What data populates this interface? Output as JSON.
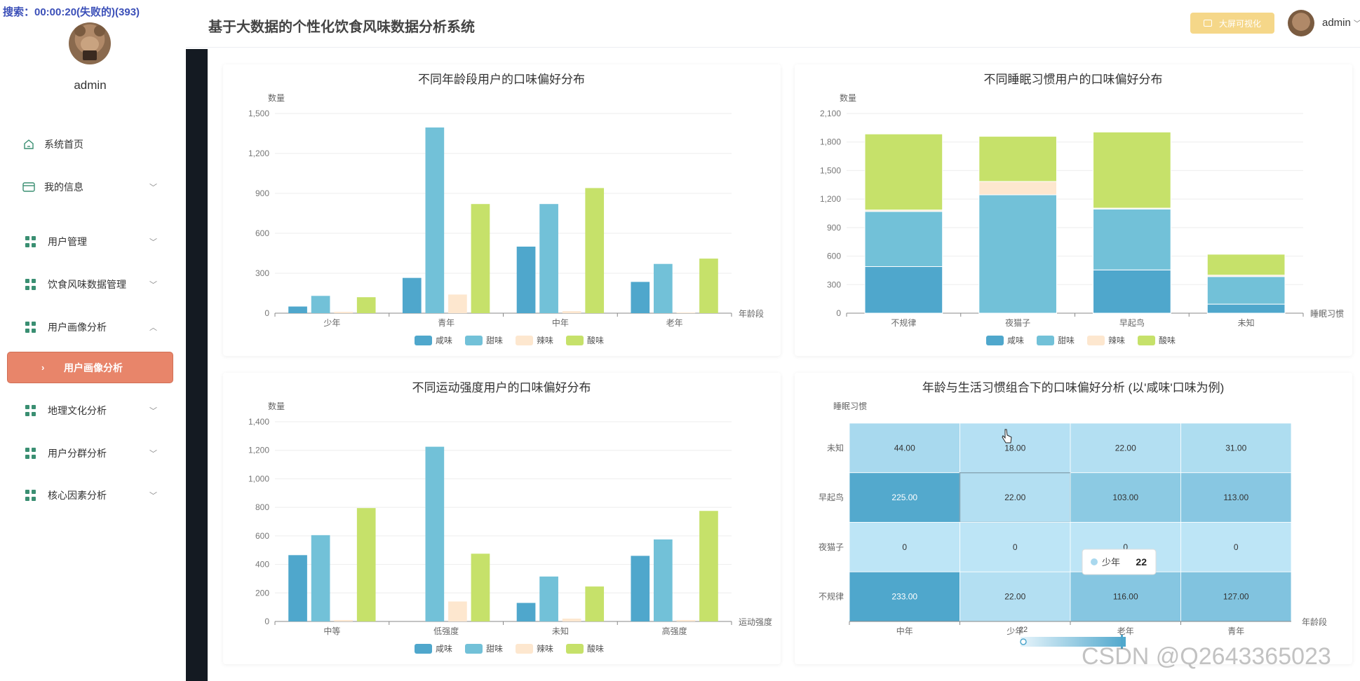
{
  "overlay": {
    "text": "搜索：00:00:20(失败的)(393)"
  },
  "sidebar": {
    "username": "admin",
    "items": [
      {
        "label": "系统首页",
        "icon": "home-icon",
        "has_chevron": false
      },
      {
        "label": "我的信息",
        "icon": "wallet-icon",
        "has_chevron": true
      },
      {
        "label": "用户管理",
        "icon": "grid-icon",
        "has_chevron": true
      },
      {
        "label": "饮食风味数据管理",
        "icon": "grid-icon",
        "has_chevron": true
      },
      {
        "label": "用户画像分析",
        "icon": "grid-icon",
        "has_chevron": true,
        "expanded": true
      },
      {
        "label": "地理文化分析",
        "icon": "grid-icon",
        "has_chevron": true
      },
      {
        "label": "用户分群分析",
        "icon": "grid-icon",
        "has_chevron": true
      },
      {
        "label": "核心因素分析",
        "icon": "grid-icon",
        "has_chevron": true
      }
    ],
    "active_sub_item": {
      "label": "用户画像分析"
    }
  },
  "header": {
    "title": "基于大数据的个性化饮食风味数据分析系统",
    "bigscreen_label": "大屏可视化",
    "username": "admin"
  },
  "colors": {
    "咸味": "#4fa7cc",
    "甜味": "#72c1d8",
    "辣味": "#fde7cf",
    "酸味": "#c6e16a",
    "accent": "#e8856a"
  },
  "chart_data": [
    {
      "type": "bar",
      "title": "不同年龄段用户的口味偏好分布",
      "ylabel": "数量",
      "xlabel": "年龄段",
      "ylim": [
        0,
        1500
      ],
      "yticks": [
        "0",
        "300",
        "600",
        "900",
        "1,200",
        "1,500"
      ],
      "yticks_values": [
        0,
        300,
        600,
        900,
        1200,
        1500
      ],
      "categories": [
        "少年",
        "青年",
        "中年",
        "老年"
      ],
      "series": [
        {
          "name": "咸味",
          "values": [
            50,
            265,
            500,
            235
          ]
        },
        {
          "name": "甜味",
          "values": [
            130,
            1395,
            820,
            370
          ]
        },
        {
          "name": "辣味",
          "values": [
            10,
            140,
            15,
            5
          ]
        },
        {
          "name": "酸味",
          "values": [
            120,
            820,
            940,
            410
          ]
        }
      ],
      "legend": "bottom"
    },
    {
      "type": "bar",
      "stacked": true,
      "title": "不同睡眠习惯用户的口味偏好分布",
      "ylabel": "数量",
      "xlabel": "睡眠习惯",
      "ylim": [
        0,
        2100
      ],
      "yticks": [
        "0",
        "300",
        "600",
        "900",
        "1,200",
        "1,500",
        "1,800",
        "2,100"
      ],
      "yticks_values": [
        0,
        300,
        600,
        900,
        1200,
        1500,
        1800,
        2100
      ],
      "categories": [
        "不规律",
        "夜猫子",
        "早起鸟",
        "未知"
      ],
      "series": [
        {
          "name": "咸味",
          "values": [
            490,
            0,
            455,
            95
          ]
        },
        {
          "name": "甜味",
          "values": [
            580,
            1245,
            640,
            290
          ]
        },
        {
          "name": "辣味",
          "values": [
            15,
            140,
            10,
            15
          ]
        },
        {
          "name": "酸味",
          "values": [
            800,
            475,
            800,
            220
          ]
        }
      ],
      "legend": "bottom"
    },
    {
      "type": "bar",
      "title": "不同运动强度用户的口味偏好分布",
      "ylabel": "数量",
      "xlabel": "运动强度",
      "ylim": [
        0,
        1400
      ],
      "yticks": [
        "0",
        "200",
        "400",
        "600",
        "800",
        "1,000",
        "1,200",
        "1,400"
      ],
      "yticks_values": [
        0,
        200,
        400,
        600,
        800,
        1000,
        1200,
        1400
      ],
      "categories": [
        "中等",
        "低强度",
        "未知",
        "高强度"
      ],
      "series": [
        {
          "name": "咸味",
          "values": [
            465,
            0,
            130,
            460
          ]
        },
        {
          "name": "甜味",
          "values": [
            605,
            1225,
            315,
            575
          ]
        },
        {
          "name": "辣味",
          "values": [
            10,
            140,
            20,
            10
          ]
        },
        {
          "name": "酸味",
          "values": [
            795,
            475,
            245,
            775
          ]
        }
      ],
      "legend": "bottom"
    },
    {
      "type": "heatmap",
      "title": "年龄与生活习惯组合下的口味偏好分析 (以'咸味'口味为例)",
      "ylabel": "睡眠习惯",
      "xlabel": "年龄段",
      "x_categories": [
        "中年",
        "少年",
        "老年",
        "青年"
      ],
      "y_categories": [
        "未知",
        "早起鸟",
        "夜猫子",
        "不规律"
      ],
      "cell_labels": [
        [
          "44.00",
          "18.00",
          "22.00",
          "31.00"
        ],
        [
          "225.00",
          "22.00",
          "103.00",
          "113.00"
        ],
        [
          "0",
          "0",
          "0",
          "0"
        ],
        [
          "233.00",
          "22.00",
          "116.00",
          "127.00"
        ]
      ],
      "values": [
        [
          44,
          18,
          22,
          31
        ],
        [
          225,
          22,
          103,
          113
        ],
        [
          0,
          0,
          0,
          0
        ],
        [
          233,
          22,
          116,
          127
        ]
      ],
      "tooltip": {
        "name": "少年",
        "value": "22"
      },
      "visual_map_value": "22"
    }
  ],
  "watermark": "CSDN @Q2643365023"
}
